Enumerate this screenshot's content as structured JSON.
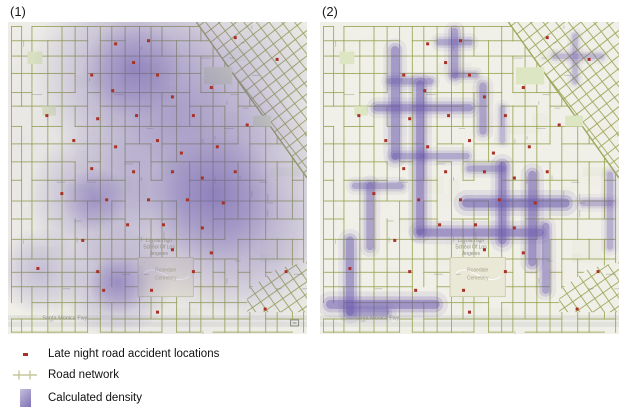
{
  "figure": {
    "panels": [
      {
        "label": "(1)",
        "type": "planar"
      },
      {
        "label": "(2)",
        "type": "network"
      }
    ],
    "legend": {
      "items": [
        {
          "icon": "accident-marker-icon",
          "label": "Late night road accident locations"
        },
        {
          "icon": "road-network-icon",
          "label": "Road network"
        },
        {
          "icon": "density-swatch-icon",
          "label": "Calculated density"
        }
      ],
      "swatch_gradient": [
        "#c6bfdc",
        "#7e72b5"
      ]
    },
    "map_labels": {
      "freeway": "Santa Monica Fwy",
      "school_lines": [
        "Loyola High",
        "School Of Los",
        "Angeles"
      ],
      "cemetery_lines": [
        "Rosedale",
        "Cemetery"
      ]
    },
    "map_style": {
      "base": "#f1f0e8",
      "block_tints": [
        "#e9e9db",
        "#ecebdf",
        "#e4e6d6"
      ],
      "road": "#9da75a",
      "road_alpha": 0.88,
      "freeway_fill": "#e2e2dc",
      "freeway_line": "#f5f5f1",
      "park": "#dde6c2",
      "cemetery_fill": "#eae8d6",
      "cemetery_edge": "#cfcdae",
      "density": "#6856ac",
      "accident": "#a93226",
      "label_text": "#8f8d7f",
      "smudge": "#7d7c74",
      "badge": "#8a8a88",
      "legend_road_icon": "#c5c79b"
    },
    "map_data": {
      "grid": {
        "vspace": 13,
        "hspace": 17,
        "skip": 0.13,
        "diag_space": 10
      },
      "freeway_band": {
        "y0": 0.94,
        "y1": 0.977,
        "label_x": 0.19,
        "label_y": 0.928
      },
      "cemetery_rect": {
        "x": 0.435,
        "y": 0.755,
        "w": 0.185,
        "h": 0.125
      },
      "school_label_pos": {
        "x": 0.505,
        "y": 0.705
      },
      "parks": [
        [
          0.655,
          0.145,
          0.095,
          0.055
        ],
        [
          0.82,
          0.3,
          0.06,
          0.035
        ],
        [
          0.065,
          0.095,
          0.05,
          0.04
        ],
        [
          0.115,
          0.27,
          0.045,
          0.03
        ]
      ],
      "diagonal_triangle": [
        [
          0.63,
          0.0
        ],
        [
          1.0,
          0.0
        ],
        [
          1.0,
          0.5
        ]
      ],
      "diagonal_wedge": [
        [
          0.8,
          0.93
        ],
        [
          0.8,
          0.86
        ],
        [
          0.9,
          0.79
        ],
        [
          1.0,
          0.77
        ],
        [
          1.0,
          0.93
        ]
      ],
      "accident_points": [
        [
          0.36,
          0.07
        ],
        [
          0.47,
          0.06
        ],
        [
          0.76,
          0.05
        ],
        [
          0.42,
          0.13
        ],
        [
          0.28,
          0.17
        ],
        [
          0.5,
          0.17
        ],
        [
          0.9,
          0.12
        ],
        [
          0.35,
          0.22
        ],
        [
          0.55,
          0.24
        ],
        [
          0.68,
          0.21
        ],
        [
          0.13,
          0.3
        ],
        [
          0.3,
          0.31
        ],
        [
          0.43,
          0.3
        ],
        [
          0.62,
          0.3
        ],
        [
          0.8,
          0.33
        ],
        [
          0.22,
          0.38
        ],
        [
          0.36,
          0.4
        ],
        [
          0.5,
          0.38
        ],
        [
          0.58,
          0.42
        ],
        [
          0.7,
          0.4
        ],
        [
          0.28,
          0.47
        ],
        [
          0.42,
          0.48
        ],
        [
          0.55,
          0.48
        ],
        [
          0.65,
          0.5
        ],
        [
          0.76,
          0.48
        ],
        [
          0.18,
          0.55
        ],
        [
          0.33,
          0.57
        ],
        [
          0.47,
          0.57
        ],
        [
          0.6,
          0.57
        ],
        [
          0.72,
          0.58
        ],
        [
          0.4,
          0.65
        ],
        [
          0.52,
          0.65
        ],
        [
          0.65,
          0.66
        ],
        [
          0.25,
          0.7
        ],
        [
          0.55,
          0.73
        ],
        [
          0.68,
          0.74
        ],
        [
          0.1,
          0.79
        ],
        [
          0.3,
          0.8
        ],
        [
          0.62,
          0.8
        ],
        [
          0.32,
          0.86
        ],
        [
          0.48,
          0.86
        ],
        [
          0.5,
          0.93
        ],
        [
          0.86,
          0.92
        ],
        [
          0.93,
          0.8
        ]
      ],
      "planar_density_blobs": [
        [
          0.55,
          0.42,
          0.78,
          0.13
        ],
        [
          0.42,
          0.16,
          0.34,
          0.38
        ],
        [
          0.42,
          0.15,
          0.17,
          0.38
        ],
        [
          0.7,
          0.55,
          0.4,
          0.42
        ],
        [
          0.69,
          0.56,
          0.22,
          0.45
        ],
        [
          0.29,
          0.56,
          0.23,
          0.33
        ],
        [
          0.29,
          0.57,
          0.11,
          0.35
        ],
        [
          0.36,
          0.83,
          0.19,
          0.38
        ],
        [
          0.37,
          0.84,
          0.1,
          0.38
        ],
        [
          0.11,
          0.8,
          0.15,
          0.3
        ],
        [
          0.75,
          0.18,
          0.3,
          0.2
        ],
        [
          0.55,
          0.3,
          0.35,
          0.18
        ],
        [
          0.85,
          0.75,
          0.25,
          0.15
        ]
      ],
      "network_density_segments": [
        [
          0.251,
          0.09,
          0.251,
          0.43,
          9,
          0.5
        ],
        [
          0.335,
          0.2,
          0.335,
          0.67,
          9,
          0.55
        ],
        [
          0.19,
          0.275,
          0.5,
          0.275,
          8,
          0.5
        ],
        [
          0.235,
          0.19,
          0.37,
          0.19,
          7,
          0.4
        ],
        [
          0.45,
          0.03,
          0.45,
          0.17,
          8,
          0.45
        ],
        [
          0.4,
          0.065,
          0.5,
          0.065,
          7,
          0.4
        ],
        [
          0.545,
          0.205,
          0.545,
          0.35,
          8,
          0.45
        ],
        [
          0.49,
          0.58,
          0.82,
          0.58,
          10,
          0.6
        ],
        [
          0.61,
          0.46,
          0.61,
          0.7,
          9,
          0.55
        ],
        [
          0.71,
          0.49,
          0.71,
          0.77,
          9,
          0.55
        ],
        [
          0.335,
          0.675,
          0.735,
          0.675,
          9,
          0.55
        ],
        [
          0.1,
          0.7,
          0.1,
          0.93,
          9,
          0.5
        ],
        [
          0.035,
          0.905,
          0.385,
          0.905,
          10,
          0.55
        ],
        [
          0.755,
          0.655,
          0.755,
          0.86,
          8,
          0.45
        ],
        [
          0.35,
          0.43,
          0.49,
          0.43,
          7,
          0.4
        ],
        [
          0.167,
          0.525,
          0.167,
          0.72,
          8,
          0.45
        ],
        [
          0.117,
          0.525,
          0.27,
          0.525,
          7,
          0.4
        ],
        [
          0.853,
          0.045,
          0.853,
          0.19,
          6,
          0.3
        ],
        [
          0.786,
          0.11,
          0.94,
          0.11,
          6,
          0.3
        ],
        [
          0.97,
          0.49,
          0.97,
          0.72,
          7,
          0.35
        ],
        [
          0.61,
          0.275,
          0.61,
          0.38,
          6,
          0.3
        ],
        [
          0.5,
          0.47,
          0.61,
          0.47,
          7,
          0.4
        ],
        [
          0.251,
          0.43,
          0.335,
          0.43,
          7,
          0.4
        ],
        [
          0.45,
          0.17,
          0.52,
          0.17,
          6,
          0.35
        ],
        [
          0.88,
          0.58,
          0.97,
          0.58,
          7,
          0.35
        ],
        [
          0.1,
          0.93,
          0.22,
          0.93,
          8,
          0.4
        ]
      ]
    }
  }
}
